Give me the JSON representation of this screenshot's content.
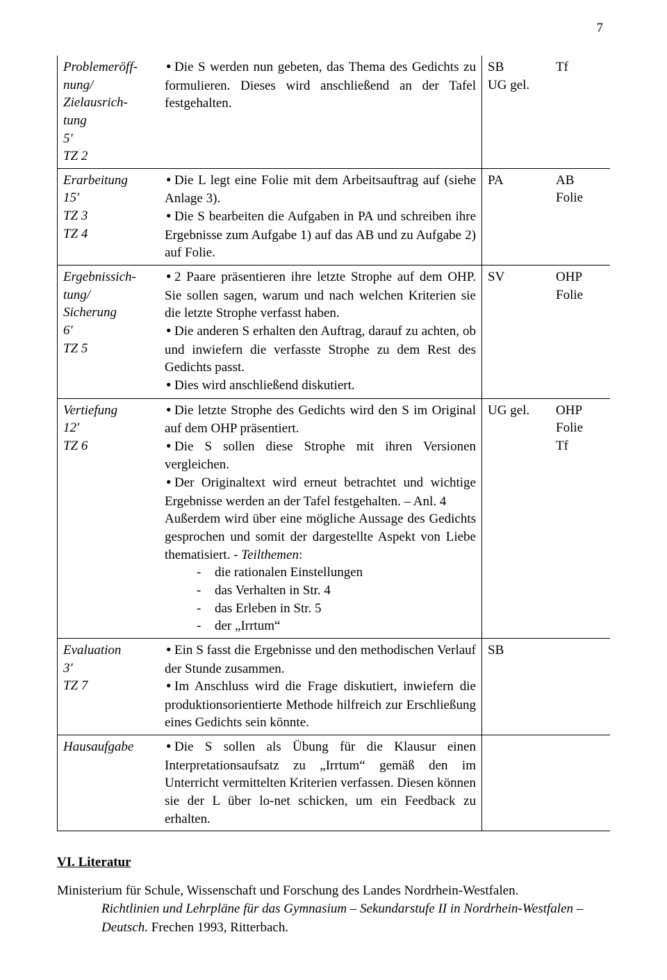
{
  "page_number": "7",
  "table": {
    "rows": [
      {
        "phase_lines": [
          "Problemeröff-",
          "nung/",
          "Zielausrich-",
          "tung",
          "5'",
          "TZ 2"
        ],
        "content": {
          "bullets": [
            "Die S werden nun gebeten, das Thema des Gedichts zu formulieren. Dieses wird anschließend an der Tafel festgehalten."
          ]
        },
        "social": [
          "SB",
          "UG gel."
        ],
        "media": [
          "Tf"
        ]
      },
      {
        "phase_lines": [
          "Erarbeitung",
          "15'",
          "TZ 3",
          "TZ 4"
        ],
        "content": {
          "bullets": [
            "Die L legt eine Folie mit dem Arbeitsauftrag auf (siehe Anlage 3).",
            "Die S bearbeiten die Aufgaben in PA und schreiben ihre Ergebnisse zum Aufgabe 1) auf das AB und zu Aufgabe 2) auf Folie."
          ]
        },
        "social": [
          "PA"
        ],
        "media": [
          "AB",
          "Folie"
        ]
      },
      {
        "phase_lines": [
          "Ergebnissich-",
          "tung/",
          "Sicherung",
          "6'",
          "TZ 5"
        ],
        "content": {
          "bullets": [
            "2 Paare präsentieren ihre letzte Strophe auf dem OHP. Sie sollen sagen, warum und nach welchen Kriterien sie die letzte Strophe verfasst haben.",
            "Die anderen S erhalten den Auftrag, darauf zu achten, ob und inwiefern die verfasste Strophe zu dem Rest des Gedichts passt.",
            "Dies wird anschließend diskutiert."
          ]
        },
        "social": [
          "SV"
        ],
        "media": [
          "OHP",
          "Folie"
        ]
      },
      {
        "phase_lines": [
          "Vertiefung",
          "12'",
          "TZ 6"
        ],
        "content": {
          "bullets": [
            "Die letzte Strophe des Gedichts wird den S im Original auf dem OHP präsentiert.",
            "Die S sollen diese Strophe mit ihren Versionen vergleichen.",
            "Der Originaltext wird erneut betrachtet und wichtige Ergebnisse werden an der Tafel festgehalten. – Anl. 4"
          ],
          "after_bullets": "Außerdem wird über eine mögliche Aussage des Gedichts gesprochen und somit der dargestellte Aspekt von Liebe thematisiert. - ",
          "teilthemen_label": "Teilthemen",
          "teilthemen_colon": ":",
          "dashes": [
            "die rationalen Einstellungen",
            "das Verhalten in Str. 4",
            "das Erleben in Str. 5",
            "der „Irrtum“"
          ]
        },
        "social": [
          "UG gel."
        ],
        "media": [
          "OHP",
          "Folie",
          "Tf"
        ]
      },
      {
        "phase_lines": [
          "Evaluation",
          "3'",
          "TZ 7"
        ],
        "content": {
          "bullets": [
            "Ein S fasst die Ergebnisse und den methodischen Verlauf der Stunde zusammen.",
            "Im Anschluss wird die Frage diskutiert, inwiefern die produktionsorientierte Methode hilfreich zur Erschließung eines Gedichts sein könnte."
          ]
        },
        "social": [
          "SB"
        ],
        "media": []
      },
      {
        "phase_lines": [
          "Hausaufgabe"
        ],
        "content": {
          "bullets": [
            "Die S sollen als Übung für die Klausur einen Interpretationsaufsatz zu „Irrtum“ gemäß den im Unterricht vermittelten Kriterien verfassen. Diesen können sie der L über lo-net schicken, um ein Feedback zu erhalten."
          ]
        },
        "social": [],
        "media": []
      }
    ]
  },
  "section_heading": "VI. Literatur",
  "reference": {
    "line1": "Ministerium für Schule, Wissenschaft und Forschung des Landes Nordrhein-Westfalen.",
    "line2_italic": "Richtlinien und Lehrpläne für das Gymnasium – Sekundarstufe II in Nordrhein-Westfalen – Deutsch.",
    "line2_tail": " Frechen 1993, Ritterbach."
  }
}
